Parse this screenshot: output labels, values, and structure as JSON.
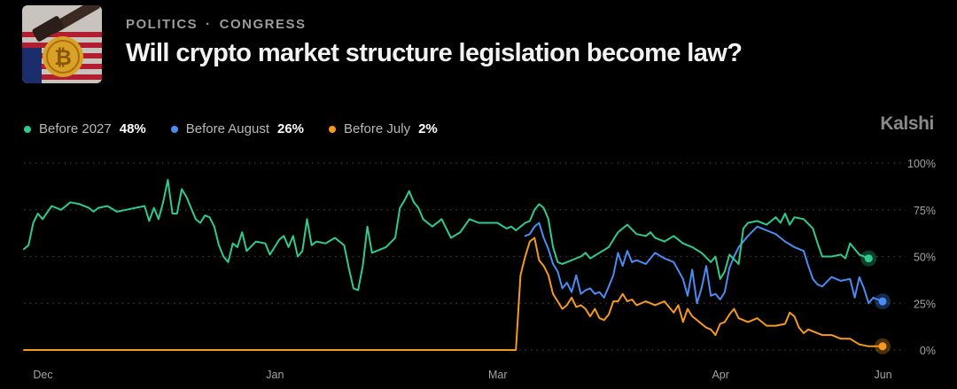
{
  "header": {
    "category": "POLITICS",
    "subcategory": "CONGRESS",
    "separator": "·",
    "title": "Will crypto market structure legislation become law?"
  },
  "brand": "Kalshi",
  "colors": {
    "green": "#2fcb8c",
    "blue": "#4a8cf2",
    "orange": "#f59a1f"
  },
  "legend": [
    {
      "name": "Before 2027",
      "value": "48%",
      "color": "#2fcb8c"
    },
    {
      "name": "Before August",
      "value": "26%",
      "color": "#4a8cf2"
    },
    {
      "name": "Before July",
      "value": "2%",
      "color": "#f59a1f"
    }
  ],
  "chart_data": {
    "type": "line",
    "x_domain": [
      0,
      185
    ],
    "x_unit": "days",
    "ylim": [
      0,
      100
    ],
    "y_ticks": [
      {
        "value": 100,
        "label": "100%"
      },
      {
        "value": 75,
        "label": "75%"
      },
      {
        "value": 50,
        "label": "50%"
      },
      {
        "value": 25,
        "label": "25%"
      },
      {
        "value": 0,
        "label": "0%"
      }
    ],
    "x_ticks": [
      {
        "value": 2,
        "label": "Dec"
      },
      {
        "value": 52,
        "label": "Jan"
      },
      {
        "value": 100,
        "label": "Mar"
      },
      {
        "value": 148,
        "label": "Apr"
      },
      {
        "value": 183,
        "label": "Jun"
      }
    ],
    "grid": true,
    "series": [
      {
        "name": "Before 2027",
        "color": "#2fcb8c",
        "points": [
          [
            0,
            54
          ],
          [
            1,
            56
          ],
          [
            2,
            68
          ],
          [
            3,
            73
          ],
          [
            4,
            70
          ],
          [
            6,
            77
          ],
          [
            8,
            75
          ],
          [
            10,
            79
          ],
          [
            12,
            78
          ],
          [
            14,
            76
          ],
          [
            15,
            74
          ],
          [
            16,
            76
          ],
          [
            18,
            77
          ],
          [
            20,
            74
          ],
          [
            22,
            75
          ],
          [
            24,
            76
          ],
          [
            26,
            77
          ],
          [
            27,
            69
          ],
          [
            28,
            76
          ],
          [
            29,
            70
          ],
          [
            30,
            79
          ],
          [
            31,
            91
          ],
          [
            32,
            73
          ],
          [
            33,
            73
          ],
          [
            34,
            86
          ],
          [
            35,
            82
          ],
          [
            36,
            76
          ],
          [
            37,
            70
          ],
          [
            38,
            68
          ],
          [
            39,
            72
          ],
          [
            40,
            71
          ],
          [
            41,
            66
          ],
          [
            42,
            56
          ],
          [
            43,
            50
          ],
          [
            44,
            47
          ],
          [
            45,
            57
          ],
          [
            46,
            55
          ],
          [
            47,
            63
          ],
          [
            48,
            53
          ],
          [
            50,
            58
          ],
          [
            52,
            57
          ],
          [
            53,
            51
          ],
          [
            55,
            59
          ],
          [
            56,
            61
          ],
          [
            57,
            55
          ],
          [
            58,
            61
          ],
          [
            59,
            50
          ],
          [
            60,
            53
          ],
          [
            61,
            70
          ],
          [
            62,
            56
          ],
          [
            63,
            58
          ],
          [
            65,
            57
          ],
          [
            67,
            60
          ],
          [
            69,
            56
          ],
          [
            70,
            44
          ],
          [
            71,
            33
          ],
          [
            72,
            32
          ],
          [
            73,
            45
          ],
          [
            74,
            66
          ],
          [
            75,
            52
          ],
          [
            76,
            53
          ],
          [
            78,
            55
          ],
          [
            80,
            60
          ],
          [
            81,
            76
          ],
          [
            82,
            80
          ],
          [
            83,
            85
          ],
          [
            84,
            79
          ],
          [
            85,
            76
          ],
          [
            86,
            70
          ],
          [
            88,
            66
          ],
          [
            90,
            70
          ],
          [
            92,
            60
          ],
          [
            94,
            63
          ],
          [
            96,
            70
          ],
          [
            98,
            68
          ],
          [
            100,
            68
          ],
          [
            102,
            68
          ],
          [
            104,
            65
          ],
          [
            105,
            66
          ],
          [
            106,
            64
          ],
          [
            108,
            68
          ],
          [
            109,
            69
          ],
          [
            110,
            75
          ],
          [
            111,
            78
          ],
          [
            112,
            76
          ],
          [
            113,
            70
          ],
          [
            114,
            55
          ],
          [
            115,
            47
          ],
          [
            116,
            46
          ],
          [
            117,
            47
          ],
          [
            118,
            48
          ],
          [
            120,
            50
          ],
          [
            121,
            52
          ],
          [
            122,
            49
          ],
          [
            124,
            52
          ],
          [
            126,
            55
          ],
          [
            128,
            63
          ],
          [
            130,
            67
          ],
          [
            132,
            62
          ],
          [
            134,
            61
          ],
          [
            135,
            63
          ],
          [
            136,
            60
          ],
          [
            138,
            58
          ],
          [
            140,
            61
          ],
          [
            142,
            57
          ],
          [
            144,
            55
          ],
          [
            146,
            52
          ],
          [
            148,
            47
          ],
          [
            149,
            50
          ],
          [
            150,
            38
          ],
          [
            151,
            42
          ],
          [
            152,
            51
          ],
          [
            154,
            46
          ],
          [
            155,
            65
          ],
          [
            156,
            68
          ],
          [
            158,
            69
          ],
          [
            160,
            67
          ],
          [
            162,
            71
          ],
          [
            163,
            68
          ],
          [
            164,
            73
          ],
          [
            165,
            67
          ],
          [
            166,
            71
          ],
          [
            168,
            70
          ],
          [
            170,
            65
          ],
          [
            171,
            57
          ],
          [
            172,
            50
          ],
          [
            174,
            50
          ],
          [
            176,
            51
          ],
          [
            177,
            49
          ],
          [
            178,
            57
          ],
          [
            179,
            54
          ],
          [
            180,
            51
          ],
          [
            182,
            49
          ]
        ]
      },
      {
        "name": "Before August",
        "color": "#4a8cf2",
        "points": [
          [
            108,
            61
          ],
          [
            109,
            62
          ],
          [
            110,
            66
          ],
          [
            111,
            68
          ],
          [
            112,
            60
          ],
          [
            113,
            54
          ],
          [
            114,
            46
          ],
          [
            115,
            42
          ],
          [
            116,
            33
          ],
          [
            117,
            36
          ],
          [
            118,
            31
          ],
          [
            119,
            40
          ],
          [
            120,
            30
          ],
          [
            121,
            32
          ],
          [
            122,
            33
          ],
          [
            123,
            30
          ],
          [
            124,
            31
          ],
          [
            125,
            28
          ],
          [
            126,
            34
          ],
          [
            127,
            40
          ],
          [
            128,
            52
          ],
          [
            129,
            45
          ],
          [
            130,
            53
          ],
          [
            131,
            47
          ],
          [
            132,
            48
          ],
          [
            134,
            46
          ],
          [
            136,
            52
          ],
          [
            138,
            49
          ],
          [
            140,
            47
          ],
          [
            142,
            38
          ],
          [
            143,
            29
          ],
          [
            144,
            43
          ],
          [
            145,
            25
          ],
          [
            146,
            33
          ],
          [
            147,
            45
          ],
          [
            148,
            29
          ],
          [
            149,
            30
          ],
          [
            150,
            27
          ],
          [
            151,
            31
          ],
          [
            152,
            44
          ],
          [
            153,
            50
          ],
          [
            154,
            55
          ],
          [
            156,
            61
          ],
          [
            158,
            66
          ],
          [
            160,
            64
          ],
          [
            162,
            62
          ],
          [
            164,
            58
          ],
          [
            166,
            55
          ],
          [
            168,
            53
          ],
          [
            169,
            45
          ],
          [
            170,
            38
          ],
          [
            171,
            35
          ],
          [
            172,
            34
          ],
          [
            174,
            39
          ],
          [
            176,
            37
          ],
          [
            178,
            38
          ],
          [
            179,
            28
          ],
          [
            180,
            39
          ],
          [
            181,
            33
          ],
          [
            182,
            25
          ],
          [
            183,
            28
          ],
          [
            185,
            26
          ]
        ]
      },
      {
        "name": "Before July",
        "color": "#f59a1f",
        "points": [
          [
            0,
            0
          ],
          [
            106,
            0
          ],
          [
            107,
            40
          ],
          [
            108,
            50
          ],
          [
            109,
            58
          ],
          [
            110,
            60
          ],
          [
            111,
            48
          ],
          [
            112,
            45
          ],
          [
            113,
            40
          ],
          [
            114,
            30
          ],
          [
            115,
            26
          ],
          [
            116,
            22
          ],
          [
            117,
            24
          ],
          [
            118,
            28
          ],
          [
            119,
            23
          ],
          [
            120,
            24
          ],
          [
            121,
            22
          ],
          [
            122,
            18
          ],
          [
            123,
            22
          ],
          [
            124,
            17
          ],
          [
            125,
            16
          ],
          [
            126,
            19
          ],
          [
            127,
            26
          ],
          [
            128,
            26
          ],
          [
            129,
            30
          ],
          [
            130,
            26
          ],
          [
            131,
            27
          ],
          [
            132,
            24
          ],
          [
            134,
            26
          ],
          [
            136,
            24
          ],
          [
            138,
            26
          ],
          [
            140,
            20
          ],
          [
            141,
            24
          ],
          [
            142,
            15
          ],
          [
            143,
            22
          ],
          [
            144,
            18
          ],
          [
            145,
            16
          ],
          [
            146,
            14
          ],
          [
            147,
            12
          ],
          [
            148,
            11
          ],
          [
            149,
            8
          ],
          [
            150,
            14
          ],
          [
            151,
            15
          ],
          [
            152,
            19
          ],
          [
            153,
            22
          ],
          [
            154,
            17
          ],
          [
            156,
            15
          ],
          [
            158,
            17
          ],
          [
            160,
            13
          ],
          [
            162,
            13
          ],
          [
            164,
            14
          ],
          [
            165,
            20
          ],
          [
            166,
            18
          ],
          [
            167,
            12
          ],
          [
            168,
            9
          ],
          [
            169,
            11
          ],
          [
            170,
            10
          ],
          [
            172,
            8
          ],
          [
            174,
            8
          ],
          [
            176,
            6
          ],
          [
            178,
            6
          ],
          [
            180,
            3
          ],
          [
            182,
            2
          ],
          [
            185,
            2
          ]
        ]
      }
    ]
  }
}
